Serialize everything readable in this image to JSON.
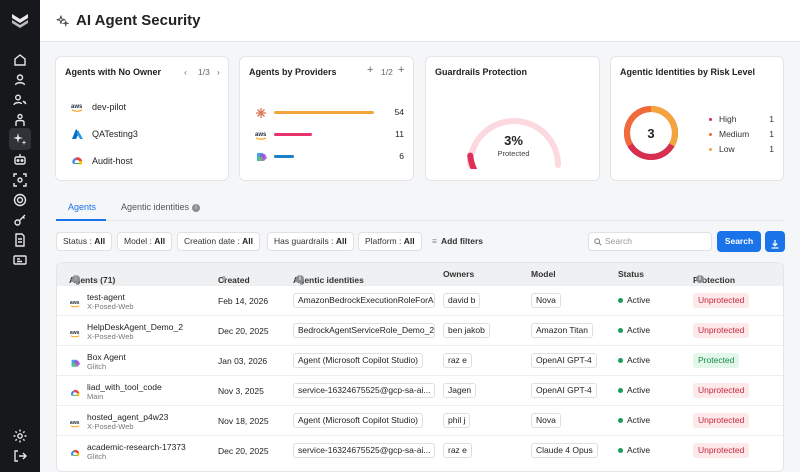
{
  "header": {
    "title": "AI Agent Security"
  },
  "cards": {
    "no_owner": {
      "title": "Agents with No Owner",
      "pager": "1/3",
      "items": [
        {
          "name": "dev-pilot",
          "logo": "aws-logo"
        },
        {
          "name": "QATesting3",
          "logo": "azure-logo"
        },
        {
          "name": "Audit-host",
          "logo": "gcp-logo"
        }
      ]
    },
    "providers": {
      "title": "Agents by Providers",
      "pager": "1/2",
      "items": [
        {
          "logo": "anthropic-logo",
          "value": "54",
          "fraction": 1.0,
          "color": "#f3a43b"
        },
        {
          "logo": "aws-logo",
          "value": "11",
          "fraction": 0.38,
          "color": "#e8336d"
        },
        {
          "logo": "copilot-logo",
          "value": "6",
          "fraction": 0.2,
          "color": "#1f7fc9"
        }
      ]
    },
    "guardrails": {
      "title": "Guardrails Protection",
      "percent": "3%",
      "label": "Protected",
      "fraction": 0.03
    },
    "risk": {
      "title": "Agentic Identities by Risk Level",
      "total": "3",
      "levels": [
        {
          "label": "High",
          "count": "1",
          "color": "#d62f4f"
        },
        {
          "label": "Medium",
          "count": "1",
          "color": "#f06a3a"
        },
        {
          "label": "Low",
          "count": "1",
          "color": "#f3a43b"
        }
      ]
    }
  },
  "tabs": [
    {
      "label": "Agents"
    },
    {
      "label": "Agentic identities"
    }
  ],
  "filters": {
    "status": {
      "label": "Status :",
      "value": "All"
    },
    "model": {
      "label": "Model :",
      "value": "All"
    },
    "creation": {
      "label": "Creation date :",
      "value": "All"
    },
    "guardrails": {
      "label": "Has guardrails :",
      "value": "All"
    },
    "platform": {
      "label": "Platform :",
      "value": "All"
    },
    "add": "Add filters",
    "search_placeholder": "Search",
    "search_button": "Search"
  },
  "table": {
    "headers": {
      "agents": "Agents (71)",
      "created": "Created",
      "identities": "Agentic identities",
      "owners": "Owners",
      "model": "Model",
      "status": "Status",
      "protection": "Protection"
    },
    "rows": [
      {
        "name": "test-agent",
        "sub": "X-Posed-Web",
        "logo": "aws-logo",
        "created": "Feb 14, 2026",
        "identity": "AmazonBedrockExecutionRoleForA...",
        "owner": "david b",
        "model": "Nova",
        "status": "Active",
        "protection": "Unprotected"
      },
      {
        "name": "HelpDeskAgent_Demo_2",
        "sub": "X-Posed-Web",
        "logo": "aws-logo",
        "created": "Dec 20, 2025",
        "identity": "BedrockAgentServiceRole_Demo_2",
        "owner": "ben jakob",
        "model": "Amazon Titan",
        "status": "Active",
        "protection": "Unprotected"
      },
      {
        "name": "Box Agent",
        "sub": "Glitch",
        "logo": "copilot-logo",
        "created": "Jan 03, 2026",
        "identity": "Agent (Microsoft Copilot Studio)",
        "owner": "raz e",
        "model": "OpenAI GPT-4",
        "status": "Active",
        "protection": "Protected"
      },
      {
        "name": "liad_with_tool_code",
        "sub": "Main",
        "logo": "gcp-logo",
        "created": "Nov 3, 2025",
        "identity": "service-16324675525@gcp-sa-ai...",
        "owner": "Jagen",
        "model": "OpenAI GPT-4",
        "status": "Active",
        "protection": "Unprotected"
      },
      {
        "name": "hosted_agent_p4w23",
        "sub": "X-Posed-Web",
        "logo": "aws-logo",
        "created": "Nov 18, 2025",
        "identity": "Agent (Microsoft Copilot Studio)",
        "owner": "phil j",
        "model": "Nova",
        "status": "Active",
        "protection": "Unprotected"
      },
      {
        "name": "academic-research-17373",
        "sub": "Glitch",
        "logo": "gcp-logo",
        "created": "Dec 20, 2025",
        "identity": "service-16324675525@gcp-sa-ai...",
        "owner": "raz e",
        "model": "Claude 4 Opus",
        "status": "Active",
        "protection": "Unprotected"
      }
    ]
  }
}
